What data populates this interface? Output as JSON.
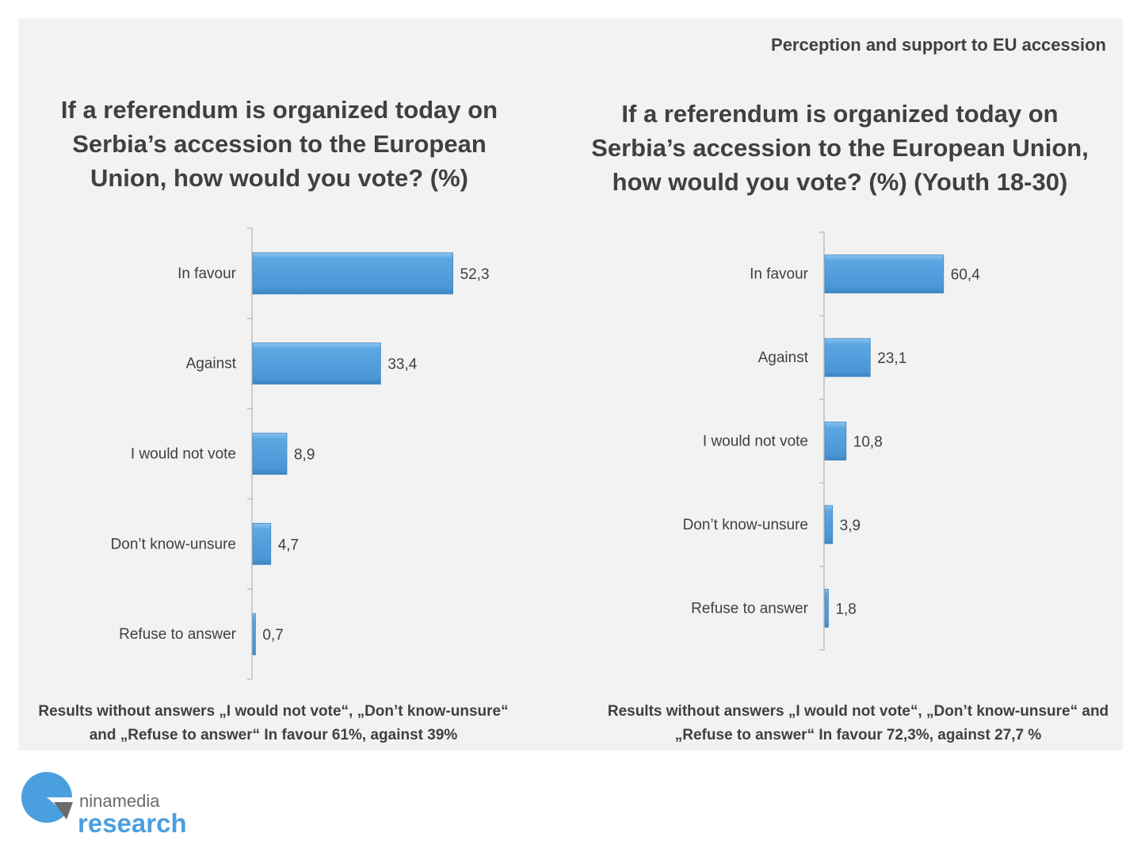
{
  "header": "Perception and support to EU accession",
  "chart_data": [
    {
      "type": "bar",
      "orientation": "horizontal",
      "title": "If a referendum is organized today on Serbia’s accession to the European Union, how would you vote? (%)",
      "categories": [
        "In favour",
        "Against",
        "I would not vote",
        "Don’t know-unsure",
        "Refuse to answer"
      ],
      "values": [
        52.3,
        33.4,
        8.9,
        4.7,
        0.7
      ],
      "value_labels": [
        "52,3",
        "33,4",
        "8,9",
        "4,7",
        "0,7"
      ],
      "color": "#5ba7e3",
      "note": "Results without answers „I would not vote“, „Don’t know-unsure“ and „Refuse to answer“ In favour 61%, against 39%"
    },
    {
      "type": "bar",
      "orientation": "horizontal",
      "title": "If a referendum is organized today on Serbia’s accession to the European Union, how would you vote? (%) (Youth 18-30)",
      "categories": [
        "In favour",
        "Against",
        "I would not vote",
        "Don’t know-unsure",
        "Refuse to answer"
      ],
      "values": [
        60.4,
        23.1,
        10.8,
        3.9,
        1.8
      ],
      "value_labels": [
        "60,4",
        "23,1",
        "10,8",
        "3,9",
        "1,8"
      ],
      "color": "#5ba7e3",
      "note": "Results without answers „I would not vote“, „Don’t know-unsure“ and „Refuse to answer“ In favour 72,3%, against 27,7 %"
    }
  ],
  "logo": {
    "line1": "ninamedia",
    "line2": "research",
    "color": "#4a9fdf"
  }
}
